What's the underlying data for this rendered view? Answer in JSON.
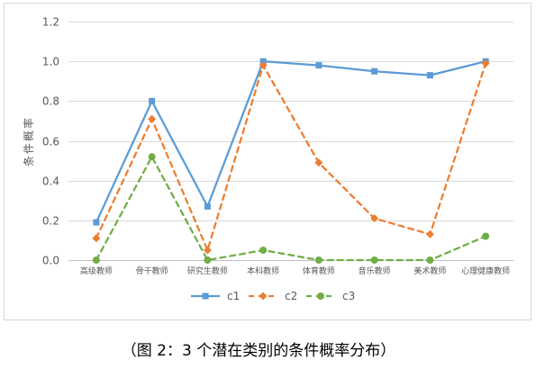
{
  "caption": "（图 2：3 个潜在类别的条件概率分布）",
  "chart_data": {
    "type": "line",
    "ylabel": "条件概率",
    "categories": [
      "高级教师",
      "骨干教师",
      "研究生教师",
      "本科教师",
      "体育教师",
      "音乐教师",
      "美术教师",
      "心理健康教师"
    ],
    "ylim": [
      0,
      1.2
    ],
    "yticks": [
      "0.0",
      "0.2",
      "0.4",
      "0.6",
      "0.8",
      "1.0",
      "1.2"
    ],
    "grid": true,
    "legend": "bottom",
    "series": [
      {
        "name": "c1",
        "color": "#5B9BD5",
        "dash": "solid",
        "marker": "square",
        "values": [
          0.19,
          0.8,
          0.27,
          1.0,
          0.98,
          0.95,
          0.93,
          1.0
        ]
      },
      {
        "name": "c2",
        "color": "#ED7D31",
        "dash": "dashed",
        "marker": "diamond",
        "values": [
          0.11,
          0.71,
          0.05,
          0.98,
          0.49,
          0.21,
          0.13,
          0.99
        ]
      },
      {
        "name": "c3",
        "color": "#70AD47",
        "dash": "dashed",
        "marker": "circle",
        "values": [
          0.0,
          0.52,
          0.0,
          0.05,
          0.0,
          0.0,
          0.0,
          0.12
        ]
      }
    ]
  }
}
